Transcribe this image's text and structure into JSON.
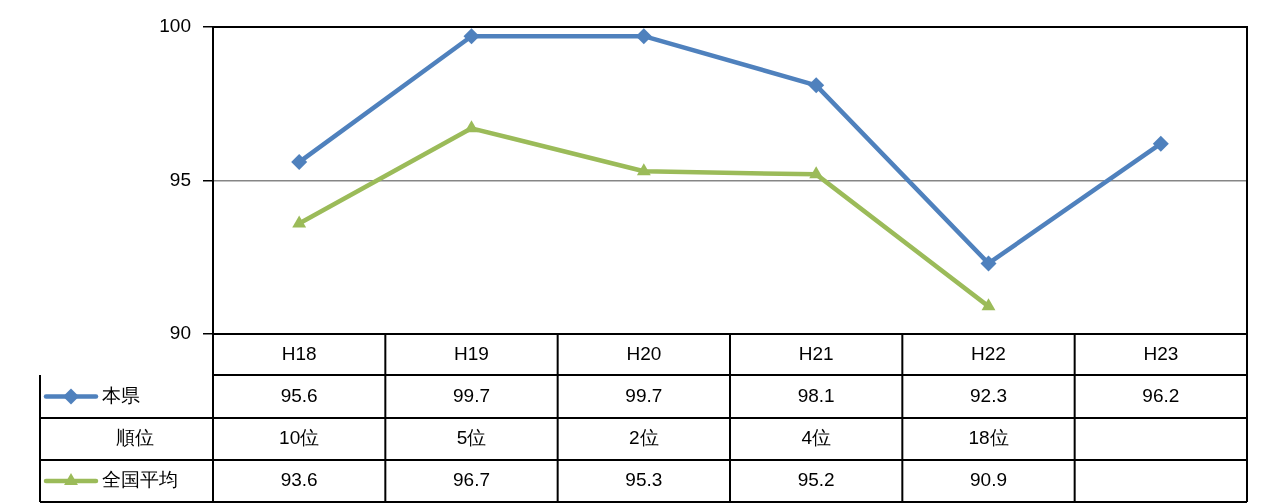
{
  "chart_data": {
    "type": "line",
    "categories": [
      "H18",
      "H19",
      "H20",
      "H21",
      "H22",
      "H23"
    ],
    "series": [
      {
        "name": "本県",
        "color": "#4f81bd",
        "marker": "diamond",
        "values": [
          95.6,
          99.7,
          99.7,
          98.1,
          92.3,
          96.2
        ]
      },
      {
        "name": "全国平均",
        "color": "#9bbb59",
        "marker": "triangle",
        "values": [
          93.6,
          96.7,
          95.3,
          95.2,
          90.9,
          null
        ]
      }
    ],
    "ylim": [
      90,
      100
    ],
    "yticks": [
      90,
      95,
      100
    ],
    "grid": "y",
    "legend": "bottom left",
    "data_labels": true,
    "annotations": [
      "順位",
      "10位",
      "5位",
      "2位",
      "4位",
      "18位"
    ]
  }
}
